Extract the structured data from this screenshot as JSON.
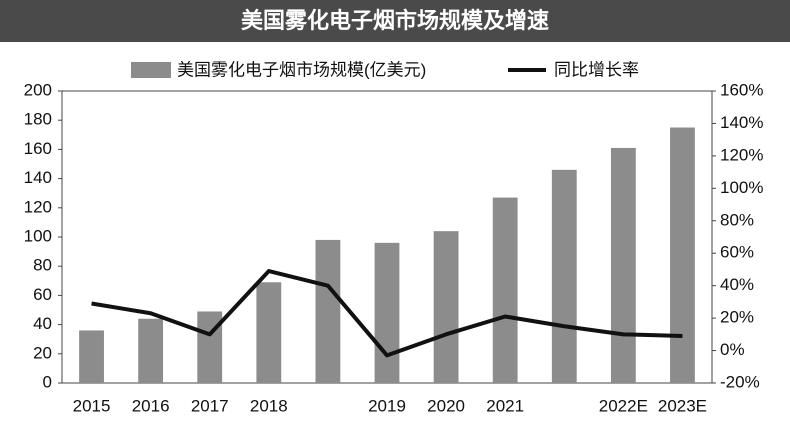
{
  "chart_data": {
    "type": "bar_line",
    "title": "美国雾化电子烟市场规模及增速",
    "categories": [
      "2015",
      "2016",
      "2017",
      "2018",
      null,
      "2019",
      "2020",
      "2021",
      null,
      "2022E",
      "2023E"
    ],
    "series": [
      {
        "name": "美国雾化电子烟市场规模(亿美元)",
        "type": "bar",
        "color": "#8c8c8c",
        "values": [
          36,
          44,
          49,
          69,
          98,
          96,
          104,
          127,
          146,
          161,
          175
        ]
      },
      {
        "name": "同比增长率",
        "type": "line",
        "axis": "y2",
        "color": "#111111",
        "values": [
          29,
          23,
          10,
          49,
          40,
          -3,
          10,
          21,
          15,
          10,
          9
        ]
      }
    ],
    "ylim": [
      0,
      200
    ],
    "yticks": [
      0,
      20,
      40,
      60,
      80,
      100,
      120,
      140,
      160,
      180,
      200
    ],
    "y2lim": [
      -20,
      160
    ],
    "y2ticks": [
      {
        "value": -20,
        "label": "-20%"
      },
      {
        "value": 0,
        "label": "0%"
      },
      {
        "value": 20,
        "label": "20%"
      },
      {
        "value": 40,
        "label": "40%"
      },
      {
        "value": 60,
        "label": "60%"
      },
      {
        "value": 80,
        "label": "80%"
      },
      {
        "value": 100,
        "label": "100%"
      },
      {
        "value": 120,
        "label": "120%"
      },
      {
        "value": 140,
        "label": "140%"
      },
      {
        "value": 160,
        "label": "160%"
      }
    ],
    "grid": false
  }
}
